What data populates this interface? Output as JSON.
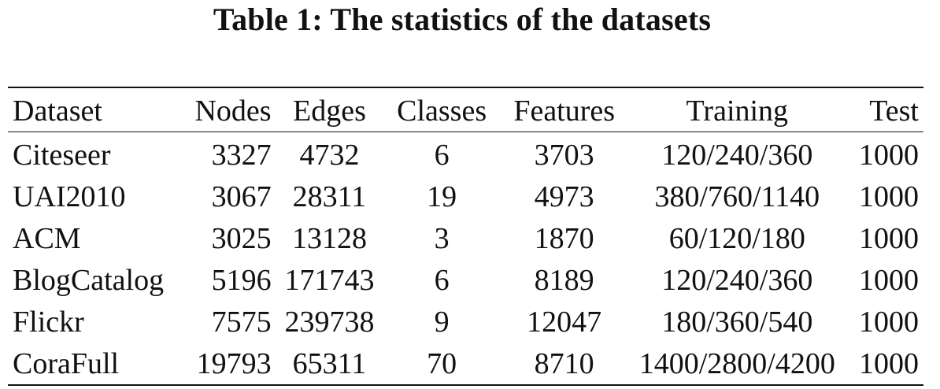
{
  "caption": "Table 1: The statistics of the datasets",
  "table": {
    "headers": [
      "Dataset",
      "Nodes",
      "Edges",
      "Classes",
      "Features",
      "Training",
      "Test"
    ],
    "rows": [
      [
        "Citeseer",
        "3327",
        "4732",
        "6",
        "3703",
        "120/240/360",
        "1000"
      ],
      [
        "UAI2010",
        "3067",
        "28311",
        "19",
        "4973",
        "380/760/1140",
        "1000"
      ],
      [
        "ACM",
        "3025",
        "13128",
        "3",
        "1870",
        "60/120/180",
        "1000"
      ],
      [
        "BlogCatalog",
        "5196",
        "171743",
        "6",
        "8189",
        "120/240/360",
        "1000"
      ],
      [
        "Flickr",
        "7575",
        "239738",
        "9",
        "12047",
        "180/360/540",
        "1000"
      ],
      [
        "CoraFull",
        "19793",
        "65311",
        "70",
        "8710",
        "1400/2800/4200",
        "1000"
      ]
    ]
  }
}
